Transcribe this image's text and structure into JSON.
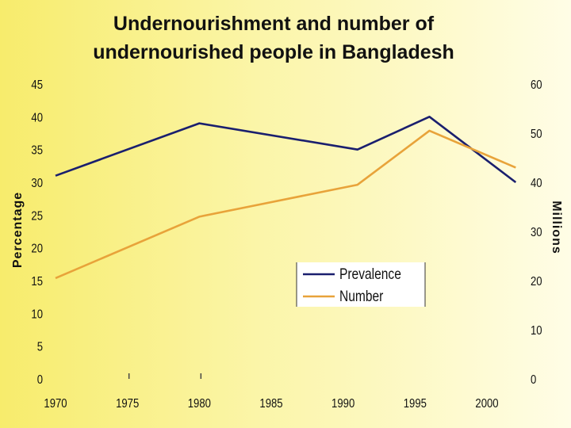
{
  "chart_data": {
    "type": "line",
    "title": "Undernourishment and number of undernourished people in Bangladesh",
    "title_lines": [
      "Undernourishment and number of",
      "undernourished people in Bangladesh"
    ],
    "y_left_label": "Percentage",
    "y_right_label": "Millions",
    "x_ticks": [
      "1970",
      "1975",
      "1980",
      "1985",
      "1990",
      "1995",
      "2000"
    ],
    "y_left_ticks": [
      "0",
      "5",
      "10",
      "15",
      "20",
      "25",
      "30",
      "35",
      "40",
      "45"
    ],
    "y_right_ticks": [
      "0",
      "10",
      "20",
      "30",
      "40",
      "50",
      "60"
    ],
    "xlim": [
      1970,
      2000
    ],
    "ylim_left": [
      0,
      45
    ],
    "ylim_right": [
      0,
      60
    ],
    "grid": false,
    "legend_position": "center-right",
    "series": [
      {
        "name": "Prevalence",
        "axis": "left",
        "color": "#1a1f6e",
        "x": [
          1970,
          1980,
          1991,
          1996,
          2002
        ],
        "y": [
          31,
          39,
          35,
          40,
          30
        ]
      },
      {
        "name": "Number",
        "axis": "right",
        "color": "#e8a33a",
        "x": [
          1970,
          1980,
          1991,
          1996,
          2002
        ],
        "y": [
          20.5,
          33,
          39.5,
          50.5,
          43
        ]
      }
    ]
  }
}
